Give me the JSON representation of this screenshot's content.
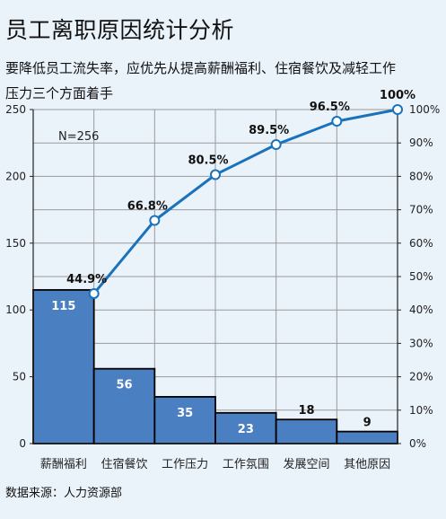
{
  "title": "员工离职原因统计分析",
  "subtitle": "要降低员工流失率，应优先从提高薪酬福利、住宿餐饮及减轻工作压力三个方面着手",
  "source": "数据来源：人力资源部",
  "colors": {
    "bar": "#4a7fc1",
    "line": "#1a72bb",
    "background": "#eaf2fa"
  },
  "chart_data": {
    "type": "bar",
    "subtype": "pareto",
    "categories": [
      "薪酬福利",
      "住宿餐饮",
      "工作压力",
      "工作氛围",
      "发展空间",
      "其他原因"
    ],
    "series": [
      {
        "values": [
          115,
          56,
          35,
          23,
          18,
          9
        ],
        "axis": "left"
      },
      {
        "type": "line",
        "values": [
          44.9,
          66.8,
          80.5,
          89.5,
          96.5,
          100
        ],
        "value_labels": [
          "44.9%",
          "66.8%",
          "80.5%",
          "89.5%",
          "96.5%",
          "100%"
        ],
        "axis": "right"
      }
    ],
    "annotation": "N=256",
    "ylim": [
      0,
      250
    ],
    "yticks": [
      0,
      50,
      100,
      150,
      200,
      250
    ],
    "y2lim": [
      0,
      100
    ],
    "y2ticks": [
      "0%",
      "10%",
      "20%",
      "30%",
      "40%",
      "50%",
      "60%",
      "70%",
      "80%",
      "90%",
      "100%"
    ],
    "grid": true
  }
}
